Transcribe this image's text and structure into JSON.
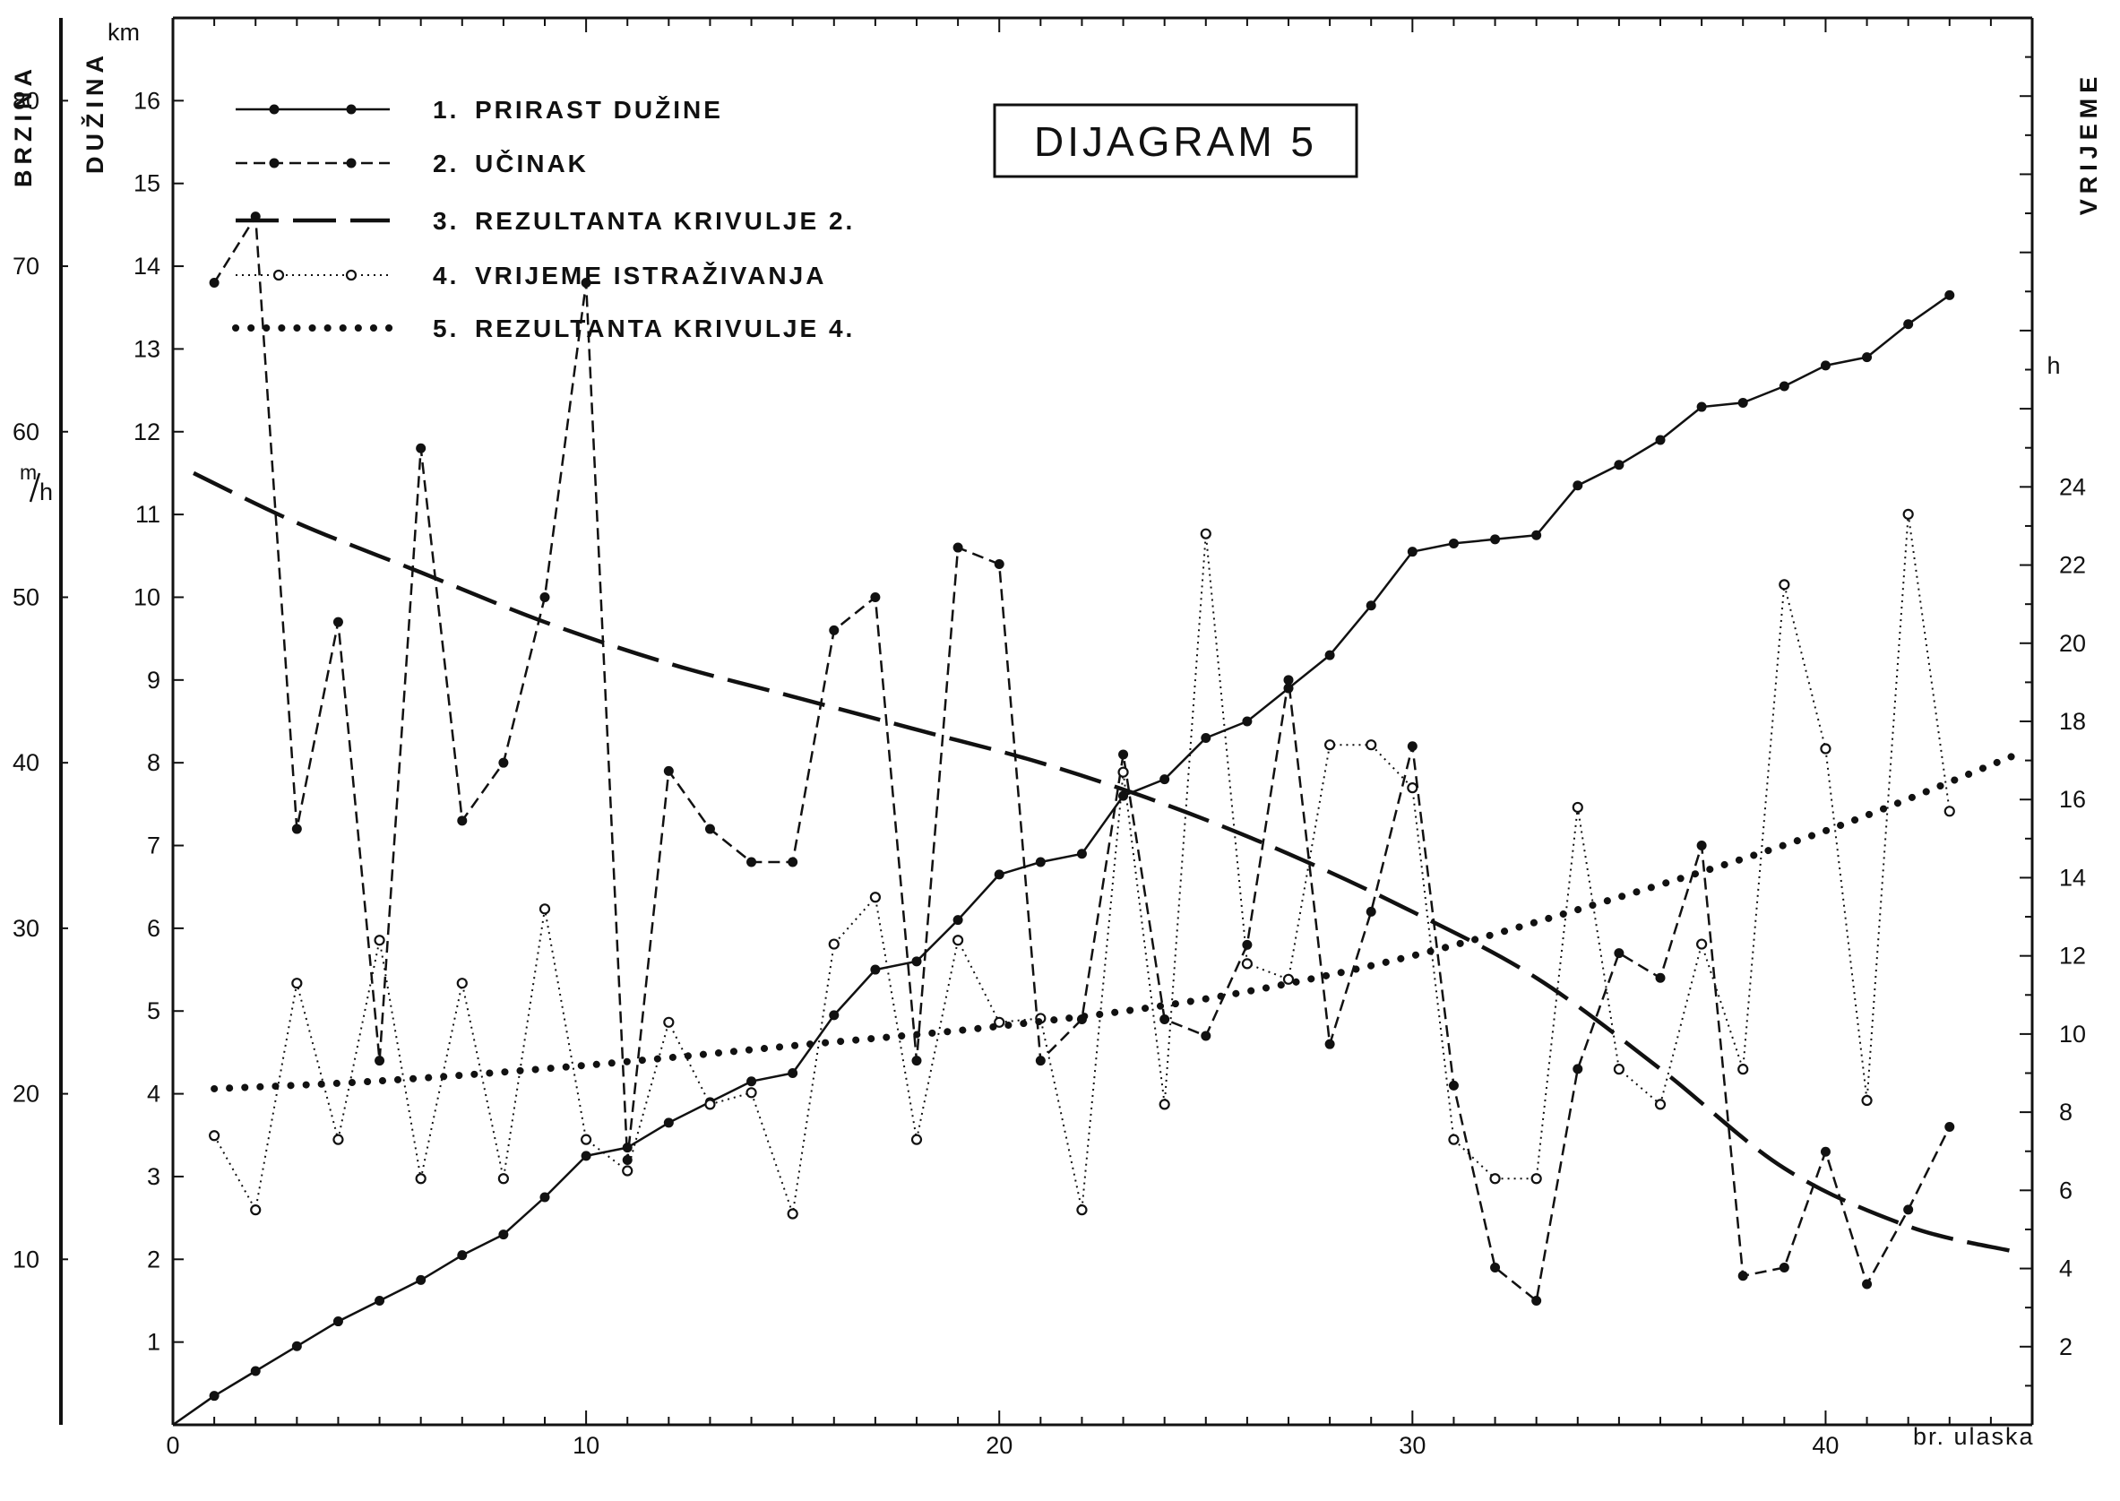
{
  "chart_data": {
    "type": "line",
    "title": "DIJAGRAM 5",
    "x_axis": {
      "label": "br. ulaska",
      "range": [
        0,
        45
      ],
      "tick_labels": [
        "0",
        "10",
        "20",
        "30",
        "40"
      ]
    },
    "axes": {
      "length": {
        "title": "DUŽINA",
        "unit": "km",
        "range": [
          0,
          17
        ],
        "tick_labels": [
          "1",
          "2",
          "3",
          "4",
          "5",
          "6",
          "7",
          "8",
          "9",
          "10",
          "11",
          "12",
          "13",
          "14",
          "15",
          "16"
        ]
      },
      "speed": {
        "title": "BRZINA",
        "unit": "m/h",
        "unit_numerator": "m",
        "unit_denominator": "h",
        "range": [
          0,
          85
        ],
        "tick_labels": [
          "10",
          "20",
          "30",
          "40",
          "50",
          "60",
          "70",
          "80"
        ]
      },
      "time": {
        "title": "VRIJEME",
        "unit": "h",
        "range": [
          0,
          36
        ],
        "tick_labels": [
          "2",
          "4",
          "6",
          "8",
          "10",
          "12",
          "14",
          "16",
          "18",
          "20",
          "22",
          "24"
        ]
      }
    },
    "legend": [
      {
        "number": "1.",
        "label": "PRIRAST DUŽINE"
      },
      {
        "number": "2.",
        "label": "UČINAK"
      },
      {
        "number": "3.",
        "label": "REZULTANTA KRIVULJE 2."
      },
      {
        "number": "4.",
        "label": "VRIJEME ISTRAŽIVANJA"
      },
      {
        "number": "5.",
        "label": "REZULTANTA KRIVULJE 4."
      }
    ],
    "legend_position": "top-left",
    "series": [
      {
        "name": "1. PRIRAST DUŽINE",
        "axis": "length",
        "x": [
          0,
          1,
          2,
          3,
          4,
          5,
          6,
          7,
          8,
          9,
          10,
          11,
          12,
          13,
          14,
          15,
          16,
          17,
          18,
          19,
          20,
          21,
          22,
          23,
          24,
          25,
          26,
          27,
          28,
          29,
          30,
          31,
          32,
          33,
          34,
          35,
          36,
          37,
          38,
          39,
          40,
          41,
          42,
          43
        ],
        "y": [
          0,
          0.35,
          0.65,
          0.95,
          1.25,
          1.5,
          1.75,
          2.05,
          2.3,
          2.75,
          3.25,
          3.35,
          3.65,
          3.9,
          4.15,
          4.25,
          4.95,
          5.5,
          5.6,
          6.1,
          6.65,
          6.8,
          6.9,
          7.6,
          7.8,
          8.3,
          8.5,
          8.9,
          9.3,
          9.9,
          10.55,
          10.65,
          10.7,
          10.75,
          11.35,
          11.6,
          11.9,
          12.3,
          12.35,
          12.55,
          12.8,
          12.9,
          13.3,
          13.65
        ]
      },
      {
        "name": "2. UČINAK",
        "axis": "speed",
        "x": [
          1,
          2,
          3,
          4,
          5,
          6,
          7,
          8,
          9,
          10,
          11,
          12,
          13,
          14,
          15,
          16,
          17,
          18,
          19,
          20,
          21,
          22,
          23,
          24,
          25,
          26,
          27,
          28,
          29,
          30,
          31,
          32,
          33,
          34,
          35,
          36,
          37,
          38,
          39,
          40,
          41,
          42,
          43
        ],
        "y": [
          69,
          73,
          36,
          48.5,
          22,
          59,
          36.5,
          40,
          50,
          69,
          16,
          39.5,
          36,
          34,
          34,
          48,
          50,
          22,
          53,
          52,
          22,
          24.5,
          40.5,
          24.5,
          23.5,
          29,
          45,
          23,
          31,
          41,
          20.5,
          9.5,
          7.5,
          21.5,
          28.5,
          27,
          35,
          9,
          9.5,
          16.5,
          8.5,
          13,
          18
        ]
      },
      {
        "name": "3. REZULTANTA KRIVULJE 2.",
        "axis": "speed",
        "style": "long-dash",
        "x": [
          0.5,
          3,
          6,
          9,
          12,
          15,
          18,
          21,
          24,
          27,
          30,
          33,
          36,
          39,
          42,
          44.5
        ],
        "y": [
          57.5,
          54.5,
          51.5,
          48.5,
          46,
          44,
          42,
          40,
          37.5,
          34.5,
          31,
          27,
          21.5,
          15.5,
          12,
          10.5
        ]
      },
      {
        "name": "4. VRIJEME ISTRAŽIVANJA",
        "axis": "time",
        "x": [
          1,
          2,
          3,
          4,
          5,
          6,
          7,
          8,
          9,
          10,
          11,
          12,
          13,
          14,
          15,
          16,
          17,
          18,
          19,
          20,
          21,
          22,
          23,
          24,
          25,
          26,
          27,
          28,
          29,
          30,
          31,
          32,
          33,
          34,
          35,
          36,
          37,
          38,
          39,
          40,
          41,
          42,
          43
        ],
        "y": [
          7.4,
          5.5,
          11.3,
          7.3,
          12.4,
          6.3,
          11.3,
          6.3,
          13.2,
          7.3,
          6.5,
          10.3,
          8.2,
          8.5,
          5.4,
          12.3,
          13.5,
          7.3,
          12.4,
          10.3,
          10.4,
          5.5,
          16.7,
          8.2,
          22.8,
          11.8,
          11.4,
          17.4,
          17.4,
          16.3,
          7.3,
          6.3,
          6.3,
          15.8,
          9.1,
          8.2,
          12.3,
          9.1,
          21.5,
          17.3,
          8.3,
          23.3,
          15.7
        ]
      },
      {
        "name": "5. REZULTANTA KRIVULJE 4.",
        "axis": "time",
        "style": "heavy-dots",
        "x": [
          1,
          5,
          10,
          15,
          20,
          25,
          30,
          35,
          40,
          44.5
        ],
        "y": [
          8.6,
          8.8,
          9.2,
          9.7,
          10.2,
          10.9,
          12.0,
          13.5,
          15.2,
          17.1
        ]
      }
    ],
    "grid": false
  }
}
